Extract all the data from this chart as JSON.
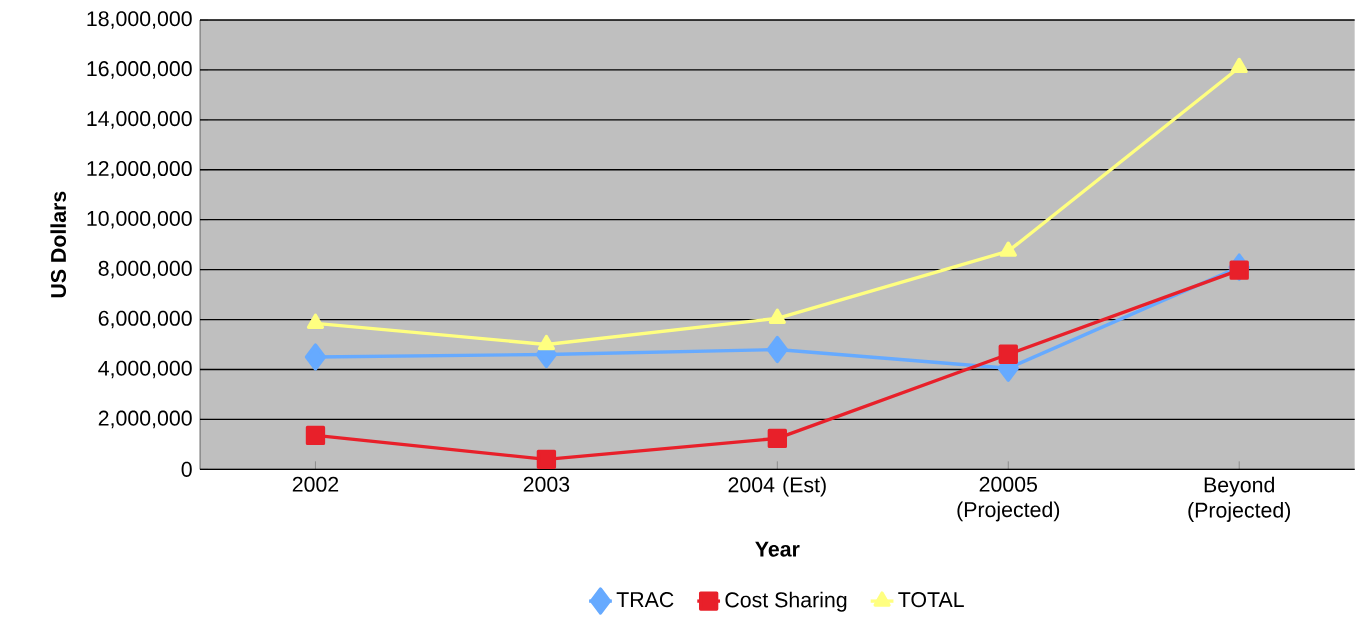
{
  "chart_data": {
    "type": "line",
    "xlabel": "Year",
    "ylabel": "US Dollars",
    "categories": [
      "2002",
      "2003",
      "2004 (Est)",
      "20005 (Projected)",
      "Beyond (Projected)"
    ],
    "series": [
      {
        "name": "TRAC",
        "color": "#66aaff",
        "marker": "diamond",
        "values": [
          4500000,
          4600000,
          4800000,
          4050000,
          8100000
        ]
      },
      {
        "name": "Cost Sharing",
        "color": "#e8202a",
        "marker": "square",
        "values": [
          1360000,
          400000,
          1240000,
          4610000,
          7980000
        ]
      },
      {
        "name": "TOTAL",
        "color": "#ffff80",
        "marker": "triangle",
        "values": [
          5850000,
          5000000,
          6050000,
          8740000,
          16100000
        ]
      }
    ],
    "ylim": [
      0,
      18000000
    ],
    "yticks": [
      {
        "value": 0,
        "label": "0"
      },
      {
        "value": 2000000,
        "label": "2,000,000"
      },
      {
        "value": 4000000,
        "label": "4,000,000"
      },
      {
        "value": 6000000,
        "label": "6,000,000"
      },
      {
        "value": 8000000,
        "label": "8,000,000"
      },
      {
        "value": 10000000,
        "label": "10,000,000"
      },
      {
        "value": 12000000,
        "label": "12,000,000"
      },
      {
        "value": 14000000,
        "label": "14,000,000"
      },
      {
        "value": 16000000,
        "label": "16,000,000"
      },
      {
        "value": 18000000,
        "label": "18,000,000"
      }
    ],
    "grid": "y",
    "legend": "bottom",
    "line_style": "solid"
  }
}
